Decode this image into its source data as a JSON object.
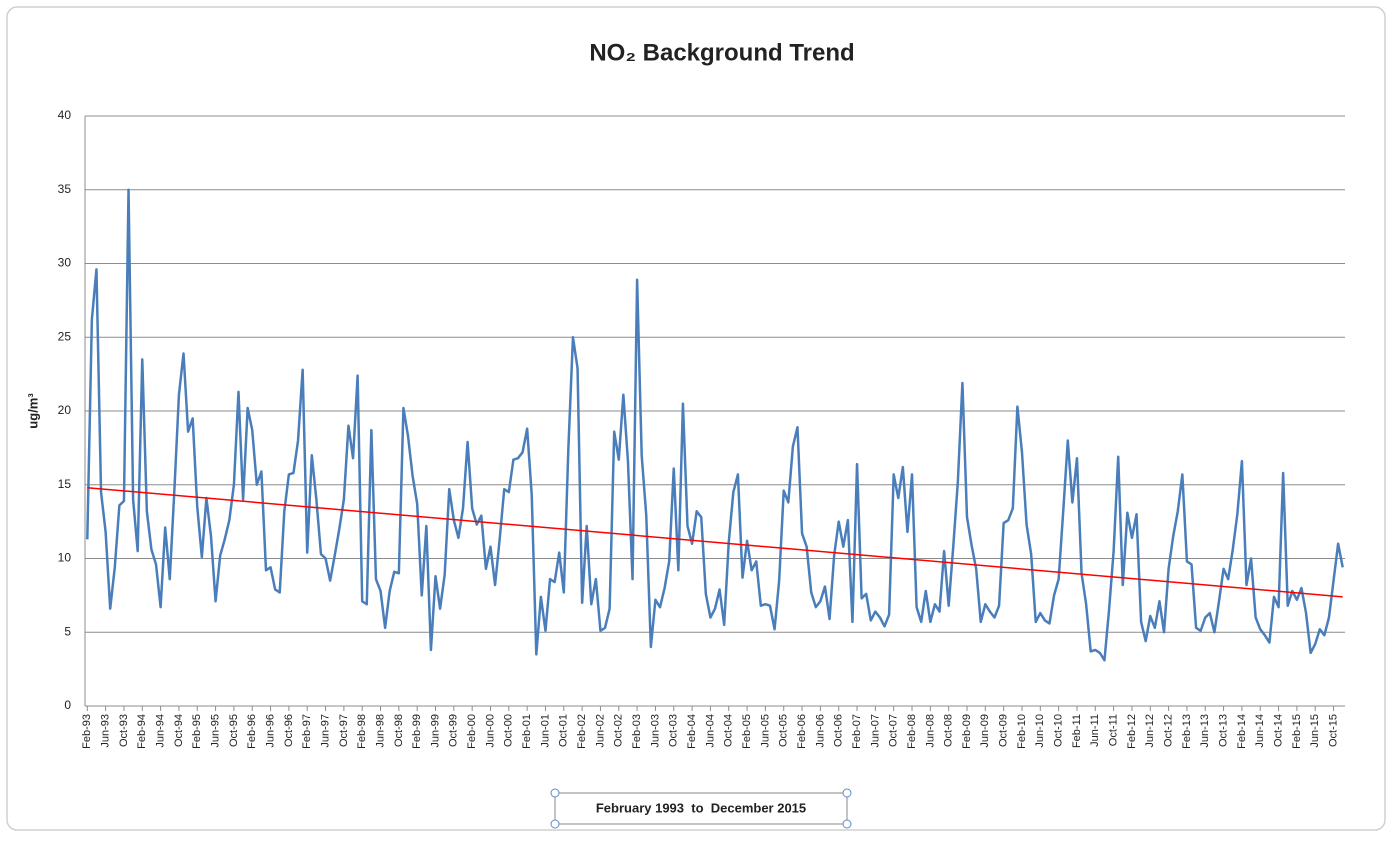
{
  "chart_data": {
    "type": "line",
    "title": "NO₂ Background Trend",
    "y_label": "ug/m³",
    "annotation": "February 1993  to  December 2015",
    "categories": [
      "Feb-93",
      null,
      null,
      null,
      "Jun-93",
      null,
      null,
      null,
      "Oct-93",
      null,
      null,
      null,
      "Feb-94",
      null,
      null,
      null,
      "Jun-94",
      null,
      null,
      null,
      "Oct-94",
      null,
      null,
      null,
      "Feb-95",
      null,
      null,
      null,
      "Jun-95",
      null,
      null,
      null,
      "Oct-95",
      null,
      null,
      null,
      "Feb-96",
      null,
      null,
      null,
      "Jun-96",
      null,
      null,
      null,
      "Oct-96",
      null,
      null,
      null,
      "Feb-97",
      null,
      null,
      null,
      "Jun-97",
      null,
      null,
      null,
      "Oct-97",
      null,
      null,
      null,
      "Feb-98",
      null,
      null,
      null,
      "Jun-98",
      null,
      null,
      null,
      "Oct-98",
      null,
      null,
      null,
      "Feb-99",
      null,
      null,
      null,
      "Jun-99",
      null,
      null,
      null,
      "Oct-99",
      null,
      null,
      null,
      "Feb-00",
      null,
      null,
      null,
      "Jun-00",
      null,
      null,
      null,
      "Oct-00",
      null,
      null,
      null,
      "Feb-01",
      null,
      null,
      null,
      "Jun-01",
      null,
      null,
      null,
      "Oct-01",
      null,
      null,
      null,
      "Feb-02",
      null,
      null,
      null,
      "Jun-02",
      null,
      null,
      null,
      "Oct-02",
      null,
      null,
      null,
      "Feb-03",
      null,
      null,
      null,
      "Jun-03",
      null,
      null,
      null,
      "Oct-03",
      null,
      null,
      null,
      "Feb-04",
      null,
      null,
      null,
      "Jun-04",
      null,
      null,
      null,
      "Oct-04",
      null,
      null,
      null,
      "Feb-05",
      null,
      null,
      null,
      "Jun-05",
      null,
      null,
      null,
      "Oct-05",
      null,
      null,
      null,
      "Feb-06",
      null,
      null,
      null,
      "Jun-06",
      null,
      null,
      null,
      "Oct-06",
      null,
      null,
      null,
      "Feb-07",
      null,
      null,
      null,
      "Jun-07",
      null,
      null,
      null,
      "Oct-07",
      null,
      null,
      null,
      "Feb-08",
      null,
      null,
      null,
      "Jun-08",
      null,
      null,
      null,
      "Oct-08",
      null,
      null,
      null,
      "Feb-09",
      null,
      null,
      null,
      "Jun-09",
      null,
      null,
      null,
      "Oct-09",
      null,
      null,
      null,
      "Feb-10",
      null,
      null,
      null,
      "Jun-10",
      null,
      null,
      null,
      "Oct-10",
      null,
      null,
      null,
      "Feb-11",
      null,
      null,
      null,
      "Jun-11",
      null,
      null,
      null,
      "Oct-11",
      null,
      null,
      null,
      "Feb-12",
      null,
      null,
      null,
      "Jun-12",
      null,
      null,
      null,
      "Oct-12",
      null,
      null,
      null,
      "Feb-13",
      null,
      null,
      null,
      "Jun-13",
      null,
      null,
      null,
      "Oct-13",
      null,
      null,
      null,
      "Feb-14",
      null,
      null,
      null,
      "Jun-14",
      null,
      null,
      null,
      "Oct-14",
      null,
      null,
      null,
      "Feb-15",
      null,
      null,
      null,
      "Jun-15",
      null,
      null,
      null,
      "Oct-15",
      null,
      null
    ],
    "values": [
      11.3,
      26.2,
      29.6,
      14.5,
      11.8,
      6.6,
      9.4,
      13.6,
      13.9,
      35,
      14,
      10.5,
      23.5,
      13.2,
      10.6,
      9.6,
      6.7,
      12.1,
      8.6,
      14.6,
      21.1,
      23.9,
      18.6,
      19.5,
      13.5,
      10.1,
      14.1,
      11.5,
      7.1,
      10.2,
      11.3,
      12.6,
      15,
      21.3,
      14,
      20.2,
      18.7,
      15,
      15.9,
      9.2,
      9.4,
      7.9,
      7.7,
      13.2,
      15.7,
      15.8,
      18,
      22.8,
      10.4,
      17,
      14,
      10.3,
      10,
      8.5,
      10.2,
      12,
      14,
      19,
      16.8,
      22.4,
      7.1,
      6.9,
      18.7,
      8.6,
      7.8,
      5.3,
      7.8,
      9.1,
      9,
      20.2,
      18.3,
      15.6,
      13.7,
      7.5,
      12.2,
      3.8,
      8.8,
      6.6,
      8.9,
      14.7,
      12.6,
      11.4,
      13.4,
      17.9,
      13.4,
      12.3,
      12.9,
      9.3,
      10.8,
      8.2,
      11.3,
      14.7,
      14.5,
      16.7,
      16.8,
      17.2,
      18.8,
      14.3,
      3.5,
      7.4,
      5.1,
      8.6,
      8.4,
      10.4,
      7.7,
      17.5,
      25,
      22.9,
      7,
      12.2,
      6.9,
      8.6,
      5.1,
      5.3,
      6.6,
      18.6,
      16.7,
      21.1,
      16.6,
      8.6,
      28.9,
      17,
      12.9,
      4,
      7.2,
      6.7,
      8,
      9.8,
      16.1,
      9.2,
      20.5,
      12.2,
      11,
      13.2,
      12.8,
      7.6,
      6,
      6.6,
      7.9,
      5.5,
      11.1,
      14.5,
      15.7,
      8.7,
      11.2,
      9.2,
      9.8,
      6.8,
      6.9,
      6.8,
      5.2,
      8.5,
      14.6,
      13.8,
      17.6,
      18.9,
      11.7,
      10.8,
      7.7,
      6.7,
      7.1,
      8.1,
      5.9,
      10.2,
      12.5,
      10.8,
      12.6,
      5.7,
      16.4,
      7.3,
      7.6,
      5.8,
      6.4,
      6,
      5.4,
      6.2,
      15.7,
      14.1,
      16.2,
      11.8,
      15.7,
      6.7,
      5.7,
      7.8,
      5.7,
      6.9,
      6.4,
      10.5,
      6.8,
      10.8,
      15.2,
      21.9,
      12.8,
      10.9,
      9.3,
      5.7,
      6.9,
      6.4,
      6,
      6.8,
      12.4,
      12.6,
      13.4,
      20.3,
      17.2,
      12.3,
      10.3,
      5.7,
      6.3,
      5.8,
      5.6,
      7.5,
      8.6,
      13.2,
      18,
      13.8,
      16.8,
      9,
      6.9,
      3.7,
      3.8,
      3.6,
      3.1,
      6.5,
      10.5,
      16.9,
      8.2,
      13.1,
      11.4,
      13,
      5.7,
      4.4,
      6.1,
      5.3,
      7.1,
      5,
      9.3,
      11.5,
      13.2,
      15.7,
      9.8,
      9.6,
      5.3,
      5.1,
      6,
      6.3,
      5,
      7.1,
      9.3,
      8.6,
      10.6,
      13,
      16.6,
      8.2,
      10,
      6,
      5.2,
      4.8,
      4.3,
      7.4,
      6.7,
      15.8,
      6.8,
      7.8,
      7.2,
      8,
      6.3,
      3.6,
      4.2,
      5.2,
      4.8,
      6,
      8.5,
      11,
      9.4
    ],
    "color": "#4a7ebb",
    "trendline": {
      "color": "#ff0000",
      "values": [
        14.8,
        7.4
      ]
    },
    "ylim": [
      0,
      40
    ],
    "yticks": [
      0,
      5,
      10,
      15,
      20,
      25,
      30,
      35,
      40
    ],
    "grid": true
  }
}
